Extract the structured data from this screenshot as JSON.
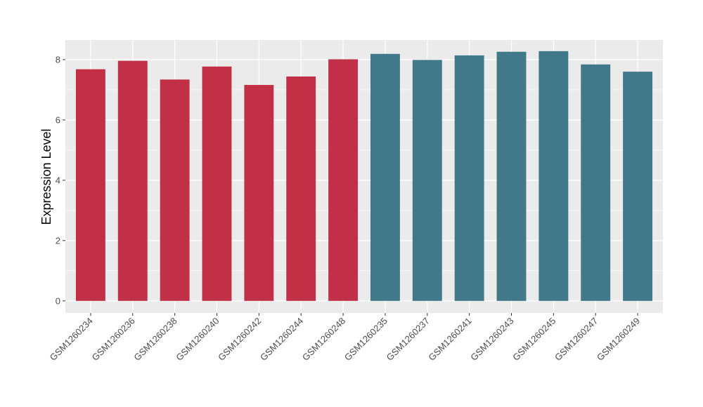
{
  "chart_data": {
    "type": "bar",
    "title": "",
    "xlabel": "",
    "ylabel": "Expression Level",
    "ylim": [
      -0.4,
      8.65
    ],
    "yticks": [
      0,
      2,
      4,
      6,
      8
    ],
    "grid": true,
    "legend": "none",
    "categories": [
      "GSM1260234",
      "GSM1260236",
      "GSM1260238",
      "GSM1260240",
      "GSM1260242",
      "GSM1260244",
      "GSM1260248",
      "GSM1260235",
      "GSM1260237",
      "GSM1260241",
      "GSM1260243",
      "GSM1260245",
      "GSM1260247",
      "GSM1260249"
    ],
    "values": [
      7.68,
      7.96,
      7.34,
      7.77,
      7.16,
      7.44,
      8.01,
      8.19,
      7.99,
      8.14,
      8.26,
      8.28,
      7.84,
      7.6
    ],
    "groups": [
      {
        "color": "#c23047",
        "count": 7
      },
      {
        "color": "#41788a",
        "count": 7
      }
    ],
    "colors": {
      "panel_background": "#ebebeb",
      "grid_major": "#ffffff",
      "tick_text": "#4d4d4d",
      "tick_mark": "#333333"
    }
  }
}
